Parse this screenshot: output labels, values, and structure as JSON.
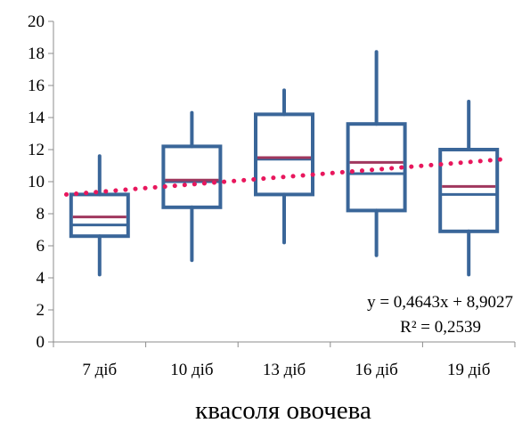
{
  "chart_data": {
    "type": "box",
    "xlabel": "квасоля овочева",
    "ylim": [
      0,
      20
    ],
    "ytick_step": 2,
    "categories": [
      "7 діб",
      "10 діб",
      "13 діб",
      "16 діб",
      "19 діб"
    ],
    "boxes": [
      {
        "min": 4.2,
        "q1": 6.6,
        "median": 7.3,
        "mean": 7.8,
        "q3": 9.2,
        "max": 11.6
      },
      {
        "min": 5.1,
        "q1": 8.4,
        "median": 10.0,
        "mean": 10.1,
        "q3": 12.2,
        "max": 14.3
      },
      {
        "min": 6.2,
        "q1": 9.2,
        "median": 11.4,
        "mean": 11.5,
        "q3": 14.2,
        "max": 15.7
      },
      {
        "min": 5.4,
        "q1": 8.2,
        "median": 10.5,
        "mean": 11.2,
        "q3": 13.6,
        "max": 18.1
      },
      {
        "min": 4.2,
        "q1": 6.9,
        "median": 9.2,
        "mean": 9.7,
        "q3": 12.0,
        "max": 15.0
      }
    ],
    "trendline": {
      "type": "linear",
      "slope": 0.4643,
      "intercept": 8.9027,
      "equation": "y = 0,4643x + 8,9027",
      "r_squared": "R² = 0,2539"
    },
    "colors": {
      "box": "#3a6699",
      "mean_line": "#a0375e",
      "trendline": "#e8175d",
      "axis": "#8c8c8c"
    }
  }
}
